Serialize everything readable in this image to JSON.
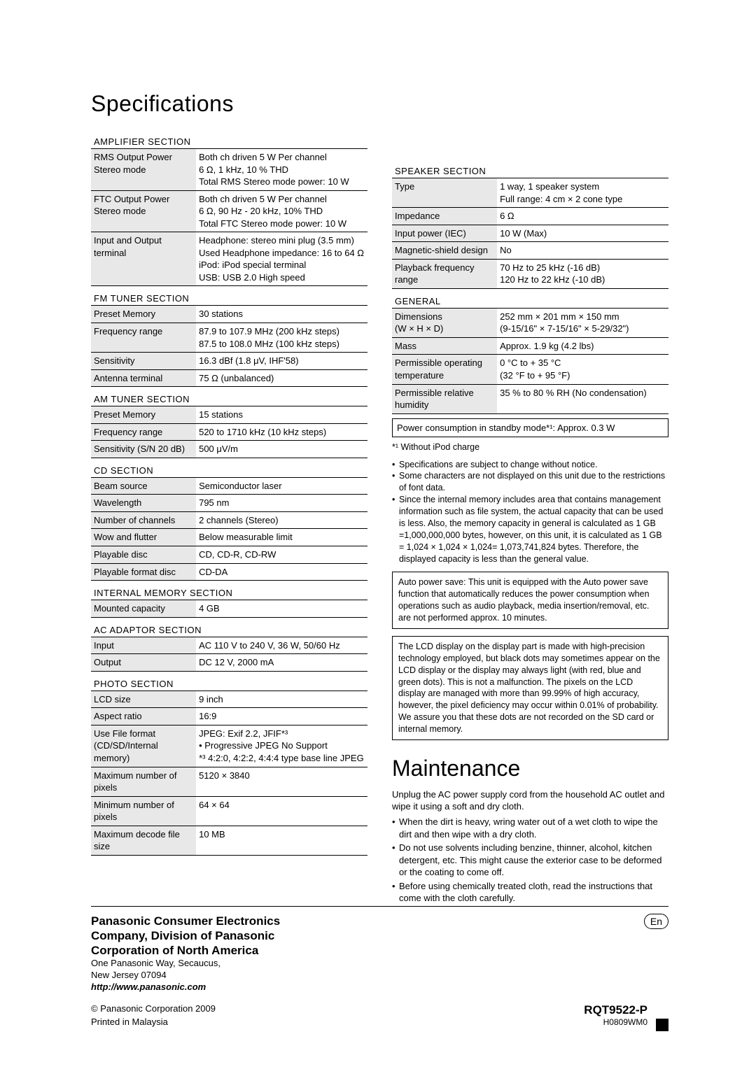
{
  "titles": {
    "specifications": "Speciﬁcations",
    "maintenance": "Maintenance"
  },
  "sections": {
    "amplifier": "AMPLIFIER SECTION",
    "fm": "FM TUNER SECTION",
    "am": "AM TUNER SECTION",
    "cd": "CD SECTION",
    "memory": "INTERNAL MEMORY SECTION",
    "ac": "AC ADAPTOR SECTION",
    "photo": "PHOTO SECTION",
    "speaker": "SPEAKER SECTION",
    "general": "GENERAL"
  },
  "amp": {
    "r1l": "RMS Output Power Stereo mode",
    "r1v": "Both ch driven 5 W Per channel\n6 Ω, 1 kHz, 10 % THD\nTotal RMS Stereo mode power: 10 W",
    "r2l": "FTC Output Power Stereo mode",
    "r2v": "Both ch driven 5 W Per channel\n6 Ω, 90 Hz - 20 kHz, 10% THD\nTotal FTC Stereo mode power: 10 W",
    "r3l": "Input and Output terminal",
    "r3v": "Headphone: stereo mini plug (3.5 mm)\n   Used Headphone impedance: 16 to 64 Ω\niPod: iPod special terminal\nUSB: USB 2.0 High speed"
  },
  "fm": {
    "r1l": "Preset Memory",
    "r1v": "30 stations",
    "r2l": "Frequency range",
    "r2v": "87.9 to 107.9 MHz (200 kHz steps)\n87.5 to 108.0 MHz (100 kHz steps)",
    "r3l": "Sensitivity",
    "r3v": "16.3 dBf (1.8 μV, IHF'58)",
    "r4l": "Antenna terminal",
    "r4v": "75 Ω (unbalanced)"
  },
  "am": {
    "r1l": "Preset Memory",
    "r1v": "15 stations",
    "r2l": "Frequency range",
    "r2v": "520 to 1710 kHz (10 kHz steps)",
    "r3l": "Sensitivity (S/N 20 dB)",
    "r3v": "500 μV/m"
  },
  "cd": {
    "r1l": "Beam source",
    "r1v": "Semiconductor laser",
    "r2l": "Wavelength",
    "r2v": "795 nm",
    "r3l": "Number of channels",
    "r3v": "2 channels (Stereo)",
    "r4l": "Wow and flutter",
    "r4v": "Below measurable limit",
    "r5l": "Playable disc",
    "r5v": "CD, CD-R, CD-RW",
    "r6l": "Playable format disc",
    "r6v": "CD-DA"
  },
  "mem": {
    "r1l": "Mounted capacity",
    "r1v": "4 GB"
  },
  "ac": {
    "r1l": "Input",
    "r1v": "AC 110 V to 240 V, 36 W, 50/60 Hz",
    "r2l": "Output",
    "r2v": "DC 12 V, 2000 mA"
  },
  "photo": {
    "r1l": "LCD size",
    "r1v": "9 inch",
    "r2l": "Aspect ratio",
    "r2v": "16:9",
    "r3l": "Use File format (CD/SD/Internal memory)",
    "r3v": "JPEG: Exif 2.2, JFIF*³\n• Progressive JPEG No Support\n*³ 4:2:0, 4:2:2, 4:4:4 type base line JPEG",
    "r4l": "Maximum number of pixels",
    "r4v": "5120 × 3840",
    "r5l": "Minimum number of pixels",
    "r5v": "64 × 64",
    "r6l": "Maximum decode file size",
    "r6v": "10 MB"
  },
  "speaker": {
    "r1l": "Type",
    "r1v": "1 way, 1 speaker system\nFull range: 4 cm × 2 cone type",
    "r2l": "Impedance",
    "r2v": "6 Ω",
    "r3l": "Input power (IEC)",
    "r3v": "10 W (Max)",
    "r4l": "Magnetic-shield design",
    "r4v": "No",
    "r5l": "Playback frequency range",
    "r5v": "70 Hz to 25 kHz (-16 dB)\n120 Hz to 22 kHz (-10 dB)"
  },
  "general": {
    "r1l": "Dimensions\n(W × H × D)",
    "r1v": "252 mm × 201 mm × 150 mm\n(9-15/16\" × 7-15/16\" × 5-29/32\")",
    "r2l": "Mass",
    "r2v": "Approx. 1.9 kg (4.2 lbs)",
    "r3l": "Permissible operating temperature",
    "r3v": "0 °C to + 35 °C\n(32 °F to + 95 °F)",
    "r4l": "Permissible relative humidity",
    "r4v": "35 % to 80 % RH (No condensation)"
  },
  "standby": "Power consumption in standby mode*¹: Approx. 0.3 W",
  "notesLead": "*¹ Without iPod charge",
  "notes": {
    "n1": "Specifications are subject to change without notice.",
    "n2": "Some characters are not displayed on this unit due to the restrictions of font data.",
    "n3": "Since the internal memory includes area that contains management information such as file system, the actual capacity that can be used is less. Also, the memory capacity in general is calculated as 1 GB =1,000,000,000 bytes, however, on this unit, it is calculated as 1 GB = 1,024 × 1,024 × 1,024= 1,073,741,824 bytes. Therefore, the displayed capacity is less than the general value."
  },
  "box1": "Auto power save: This unit is equipped with the Auto power save function that automatically reduces the power consumption when operations such as audio playback, media insertion/removal, etc. are not performed approx. 10 minutes.",
  "box2": "The LCD display on the display part is made with high-precision technology employed, but black dots may sometimes appear on the LCD display or the display may always light (with red, blue and green dots). This is not a malfunction. The pixels on the LCD display are managed with more than 99.99% of high accuracy, however, the pixel deficiency may occur within 0.01% of probability. We assure you that these dots are not recorded on the SD card or internal memory.",
  "maint": {
    "lead": "Unplug the AC power supply cord from the household AC outlet and wipe it using a soft and dry cloth.",
    "b1": "When the dirt is heavy, wring water out of a wet cloth to wipe the dirt and then wipe with a dry cloth.",
    "b2": "Do not use solvents including benzine, thinner, alcohol, kitchen detergent, etc. This might cause the exterior case to be deformed or the coating to come off.",
    "b3": "Before using chemically treated cloth, read the instructions that come with the cloth carefully."
  },
  "footer": {
    "company1": "Panasonic Consumer Electronics",
    "company2": "Company, Division of Panasonic",
    "company3": "Corporation of North America",
    "addr1": "One Panasonic Way, Secaucus,",
    "addr2": "New Jersey 07094",
    "url": "http://www.panasonic.com",
    "copyright": "© Panasonic Corporation 2009",
    "printed": "Printed in Malaysia",
    "lang": "En",
    "code": "RQT9522-P",
    "subcode": "H0809WM0"
  }
}
